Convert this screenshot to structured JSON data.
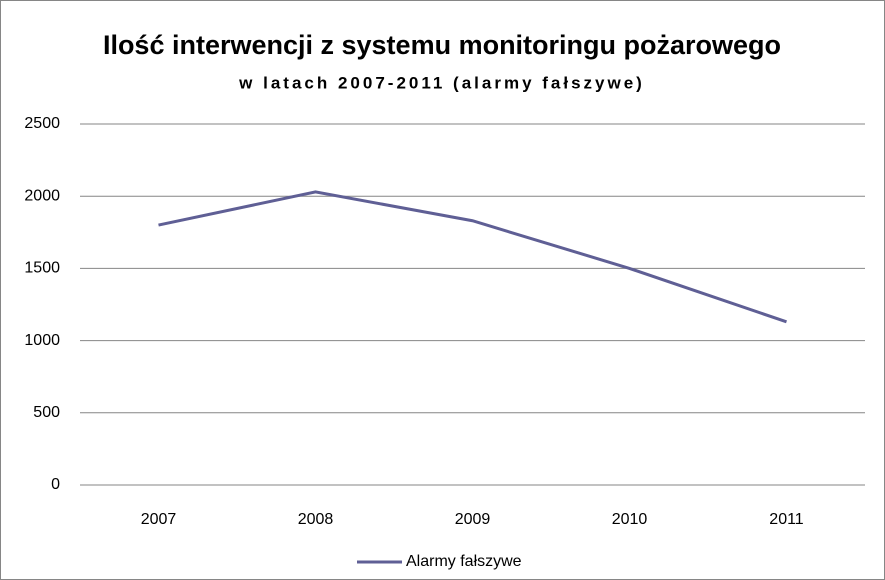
{
  "chart_data": {
    "type": "line",
    "title": "Ilość interwencji z systemu monitoringu pożarowego",
    "subtitle": "w latach 2007-2011 (alarmy fałszywe)",
    "categories": [
      "2007",
      "2008",
      "2009",
      "2010",
      "2011"
    ],
    "series": [
      {
        "name": "Alarmy fałszywe",
        "color": "#5f5f95",
        "values": [
          1800,
          2030,
          1830,
          1500,
          1130
        ]
      }
    ],
    "ylim": [
      0,
      2500
    ],
    "yticks": [
      0,
      500,
      1000,
      1500,
      2000,
      2500
    ],
    "grid": true,
    "legend": "bottom"
  }
}
